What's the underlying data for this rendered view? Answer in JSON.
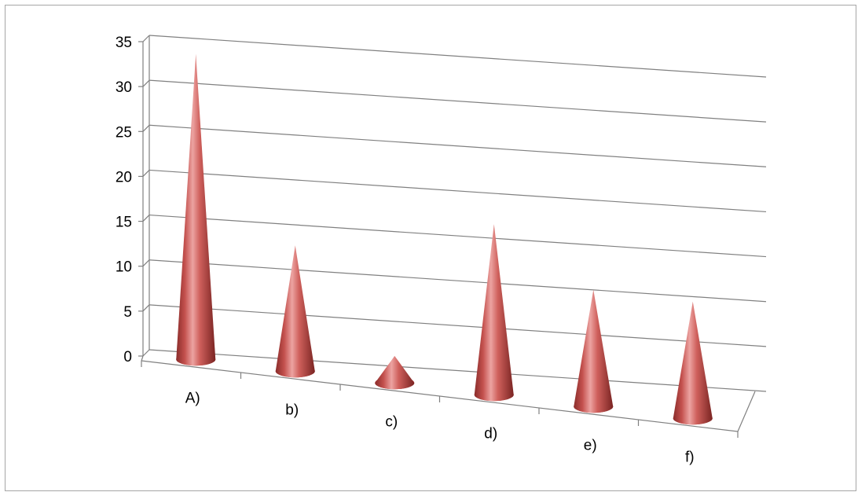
{
  "chart_data": {
    "type": "bar",
    "bar_shape": "cone",
    "view": "3d",
    "categories": [
      "A)",
      "b)",
      "c)",
      "d)",
      "e)",
      "f)"
    ],
    "values": [
      34,
      14,
      3,
      19,
      13,
      13
    ],
    "ylim": [
      0,
      35
    ],
    "yticks": [
      0,
      5,
      10,
      15,
      20,
      25,
      30,
      35
    ],
    "grid": true,
    "legend": "none",
    "colors": {
      "cone_light": "#e89393",
      "cone_mid": "#c0504d",
      "cone_dark": "#7a2422",
      "grid": "#808080",
      "axis": "#808080"
    }
  }
}
